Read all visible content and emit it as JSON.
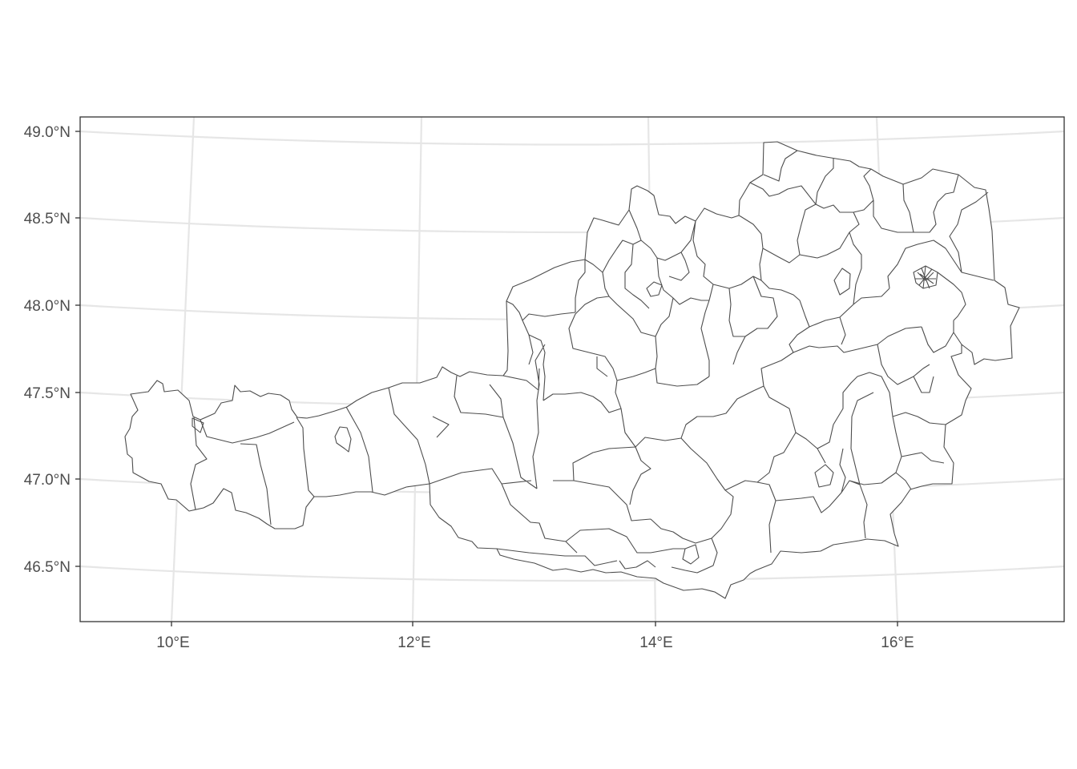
{
  "map": {
    "region": "Austria",
    "feature_type": "district boundaries",
    "fill_color": "#ffffff",
    "stroke_color": "#4d4d4d",
    "graticule_color": "#e6e6e6",
    "lat_range": [
      46.3,
      49.05
    ],
    "lon_range": [
      9.3,
      17.4
    ],
    "lat_ticks": [
      {
        "value": 49.0,
        "label": "49.0°N"
      },
      {
        "value": 48.5,
        "label": "48.5°N"
      },
      {
        "value": 48.0,
        "label": "48.0°N"
      },
      {
        "value": 47.5,
        "label": "47.5°N"
      },
      {
        "value": 47.0,
        "label": "47.0°N"
      },
      {
        "value": 46.5,
        "label": "46.5°N"
      }
    ],
    "lon_ticks": [
      {
        "value": 10,
        "label": "10°E"
      },
      {
        "value": 12,
        "label": "12°E"
      },
      {
        "value": 14,
        "label": "14°E"
      },
      {
        "value": 16,
        "label": "16°E"
      }
    ]
  }
}
